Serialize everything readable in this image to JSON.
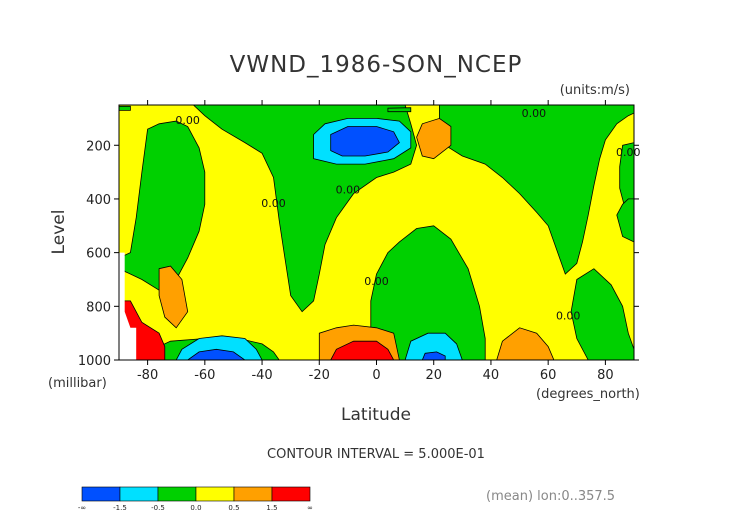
{
  "chart_data": {
    "type": "heatmap",
    "title": "VWND_1986-SON_NCEP",
    "units": "(units:m/s)",
    "xlabel": "Latitude",
    "ylabel": "Level",
    "x_unit": "(degrees_north)",
    "y_unit": "(millibar)",
    "xlim": [
      -90,
      90
    ],
    "ylim": [
      1000,
      50
    ],
    "y_inverted": true,
    "x_ticks": [
      -80,
      -60,
      -40,
      -20,
      0,
      20,
      40,
      60,
      80
    ],
    "y_ticks": [
      200,
      400,
      600,
      800,
      1000
    ],
    "contour_interval_text": "CONTOUR INTERVAL = 5.000E-01",
    "footnote": "(mean) lon:0..357.5",
    "colorbar": {
      "colors": [
        "#0050ff",
        "#00e0ff",
        "#00d000",
        "#ffff00",
        "#ffa000",
        "#ff0000"
      ],
      "labels": [
        "-∞",
        "-1.5",
        "-0.5",
        "0.0",
        "0.5",
        "1.5",
        "∞"
      ]
    },
    "contour_labels": [
      {
        "text": "0.00",
        "lat": -66,
        "lev": 120
      },
      {
        "text": "0.00",
        "lat": -36,
        "lev": 430
      },
      {
        "text": "0.00",
        "lat": -10,
        "lev": 380
      },
      {
        "text": "0.00",
        "lat": 55,
        "lev": 95
      },
      {
        "text": "0.00",
        "lat": 0,
        "lev": 720
      },
      {
        "text": "0.00",
        "lat": 67,
        "lev": 850
      },
      {
        "text": "0.00",
        "lat": 88,
        "lev": 240
      }
    ],
    "regions": [
      {
        "color": "#00d000",
        "poly": [
          [
            -90,
            620
          ],
          [
            -86,
            600
          ],
          [
            -84,
            470
          ],
          [
            -82,
            300
          ],
          [
            -80,
            140
          ],
          [
            -76,
            120
          ],
          [
            -70,
            110
          ],
          [
            -66,
            130
          ],
          [
            -62,
            210
          ],
          [
            -60,
            300
          ],
          [
            -60,
            420
          ],
          [
            -62,
            520
          ],
          [
            -66,
            620
          ],
          [
            -70,
            700
          ],
          [
            -76,
            740
          ],
          [
            -82,
            700
          ],
          [
            -88,
            670
          ]
        ]
      },
      {
        "color": "#00d000",
        "poly": [
          [
            -64,
            50
          ],
          [
            -60,
            90
          ],
          [
            -54,
            140
          ],
          [
            -46,
            190
          ],
          [
            -40,
            230
          ],
          [
            -36,
            320
          ],
          [
            -34,
            480
          ],
          [
            -32,
            620
          ],
          [
            -30,
            760
          ],
          [
            -26,
            820
          ],
          [
            -22,
            780
          ],
          [
            -20,
            680
          ],
          [
            -18,
            570
          ],
          [
            -14,
            470
          ],
          [
            -8,
            380
          ],
          [
            0,
            320
          ],
          [
            6,
            300
          ],
          [
            12,
            270
          ],
          [
            14,
            200
          ],
          [
            12,
            120
          ],
          [
            10,
            50
          ]
        ]
      },
      {
        "color": "#00d000",
        "poly": [
          [
            22,
            50
          ],
          [
            22,
            120
          ],
          [
            24,
            200
          ],
          [
            30,
            240
          ],
          [
            38,
            270
          ],
          [
            44,
            320
          ],
          [
            50,
            380
          ],
          [
            56,
            450
          ],
          [
            60,
            500
          ],
          [
            62,
            560
          ],
          [
            64,
            620
          ],
          [
            66,
            680
          ],
          [
            70,
            640
          ],
          [
            72,
            560
          ],
          [
            74,
            460
          ],
          [
            76,
            350
          ],
          [
            78,
            250
          ],
          [
            80,
            180
          ],
          [
            84,
            120
          ],
          [
            88,
            90
          ],
          [
            90,
            80
          ],
          [
            90,
            50
          ]
        ]
      },
      {
        "color": "#00d000",
        "poly": [
          [
            86,
            200
          ],
          [
            90,
            190
          ],
          [
            90,
            470
          ],
          [
            87,
            440
          ],
          [
            85,
            360
          ],
          [
            85,
            280
          ]
        ]
      },
      {
        "color": "#00d000",
        "poly": [
          [
            -2,
            900
          ],
          [
            -2,
            780
          ],
          [
            0,
            680
          ],
          [
            4,
            600
          ],
          [
            8,
            560
          ],
          [
            14,
            510
          ],
          [
            20,
            500
          ],
          [
            26,
            550
          ],
          [
            32,
            660
          ],
          [
            36,
            800
          ],
          [
            38,
            920
          ],
          [
            38,
            1000
          ],
          [
            -4,
            1000
          ]
        ]
      },
      {
        "color": "#00d000",
        "poly": [
          [
            -80,
            1000
          ],
          [
            -78,
            960
          ],
          [
            -72,
            930
          ],
          [
            -60,
            920
          ],
          [
            -48,
            920
          ],
          [
            -40,
            940
          ],
          [
            -36,
            970
          ],
          [
            -34,
            1000
          ]
        ]
      },
      {
        "color": "#00d000",
        "poly": [
          [
            -90,
            55
          ],
          [
            -86,
            55
          ],
          [
            -86,
            70
          ],
          [
            -90,
            70
          ]
        ]
      },
      {
        "color": "#00d000",
        "poly": [
          [
            4,
            62
          ],
          [
            12,
            60
          ],
          [
            12,
            75
          ],
          [
            4,
            75
          ]
        ]
      },
      {
        "color": "#00d000",
        "poly": [
          [
            70,
            700
          ],
          [
            76,
            660
          ],
          [
            82,
            720
          ],
          [
            86,
            800
          ],
          [
            88,
            900
          ],
          [
            90,
            960
          ],
          [
            90,
            1000
          ],
          [
            74,
            1000
          ],
          [
            70,
            920
          ],
          [
            68,
            820
          ]
        ]
      },
      {
        "color": "#00d000",
        "poly": [
          [
            84,
            460
          ],
          [
            86,
            420
          ],
          [
            88,
            400
          ],
          [
            90,
            400
          ],
          [
            90,
            560
          ],
          [
            86,
            540
          ]
        ]
      },
      {
        "color": "#ffa000",
        "poly": [
          [
            14,
            170
          ],
          [
            16,
            120
          ],
          [
            22,
            100
          ],
          [
            26,
            130
          ],
          [
            26,
            200
          ],
          [
            20,
            250
          ],
          [
            16,
            240
          ]
        ]
      },
      {
        "color": "#ffa000",
        "poly": [
          [
            -76,
            660
          ],
          [
            -72,
            650
          ],
          [
            -68,
            700
          ],
          [
            -66,
            820
          ],
          [
            -70,
            880
          ],
          [
            -74,
            840
          ],
          [
            -76,
            760
          ]
        ]
      },
      {
        "color": "#ffa000",
        "poly": [
          [
            -20,
            1000
          ],
          [
            -20,
            900
          ],
          [
            -14,
            880
          ],
          [
            -8,
            870
          ],
          [
            0,
            880
          ],
          [
            6,
            900
          ],
          [
            8,
            1000
          ]
        ]
      },
      {
        "color": "#ffa000",
        "poly": [
          [
            42,
            1000
          ],
          [
            44,
            930
          ],
          [
            50,
            880
          ],
          [
            56,
            900
          ],
          [
            60,
            950
          ],
          [
            62,
            1000
          ]
        ]
      },
      {
        "color": "#ff0000",
        "poly": [
          [
            -90,
            780
          ],
          [
            -86,
            780
          ],
          [
            -82,
            860
          ],
          [
            -76,
            900
          ],
          [
            -74,
            950
          ],
          [
            -74,
            1000
          ],
          [
            -90,
            1000
          ]
        ]
      },
      {
        "color": "#ff0000",
        "poly": [
          [
            -16,
            1000
          ],
          [
            -14,
            960
          ],
          [
            -8,
            930
          ],
          [
            0,
            930
          ],
          [
            4,
            960
          ],
          [
            6,
            1000
          ]
        ]
      },
      {
        "color": "#00e0ff",
        "poly": [
          [
            -22,
            250
          ],
          [
            -22,
            160
          ],
          [
            -18,
            120
          ],
          [
            -10,
            100
          ],
          [
            0,
            100
          ],
          [
            8,
            110
          ],
          [
            12,
            150
          ],
          [
            12,
            210
          ],
          [
            6,
            250
          ],
          [
            -4,
            270
          ],
          [
            -14,
            270
          ]
        ]
      },
      {
        "color": "#0050ff",
        "poly": [
          [
            -16,
            220
          ],
          [
            -16,
            160
          ],
          [
            -10,
            130
          ],
          [
            0,
            130
          ],
          [
            6,
            150
          ],
          [
            8,
            190
          ],
          [
            4,
            225
          ],
          [
            -4,
            240
          ],
          [
            -12,
            240
          ]
        ]
      },
      {
        "color": "#00e0ff",
        "poly": [
          [
            -70,
            1000
          ],
          [
            -68,
            960
          ],
          [
            -62,
            920
          ],
          [
            -54,
            910
          ],
          [
            -46,
            920
          ],
          [
            -42,
            960
          ],
          [
            -40,
            1000
          ]
        ]
      },
      {
        "color": "#0050ff",
        "poly": [
          [
            -66,
            1000
          ],
          [
            -62,
            970
          ],
          [
            -56,
            960
          ],
          [
            -50,
            970
          ],
          [
            -46,
            1000
          ]
        ]
      },
      {
        "color": "#00e0ff",
        "poly": [
          [
            10,
            1000
          ],
          [
            12,
            930
          ],
          [
            18,
            900
          ],
          [
            24,
            900
          ],
          [
            28,
            940
          ],
          [
            30,
            1000
          ]
        ]
      },
      {
        "color": "#0050ff",
        "poly": [
          [
            16,
            1000
          ],
          [
            17,
            975
          ],
          [
            21,
            970
          ],
          [
            24,
            985
          ],
          [
            24,
            1000
          ]
        ]
      },
      {
        "color": "#ffffff",
        "poly": [
          [
            -90,
            600
          ],
          [
            -88,
            600
          ],
          [
            -88,
            820
          ],
          [
            -86,
            880
          ],
          [
            -84,
            880
          ],
          [
            -84,
            1000
          ],
          [
            -90,
            1000
          ]
        ]
      }
    ]
  }
}
